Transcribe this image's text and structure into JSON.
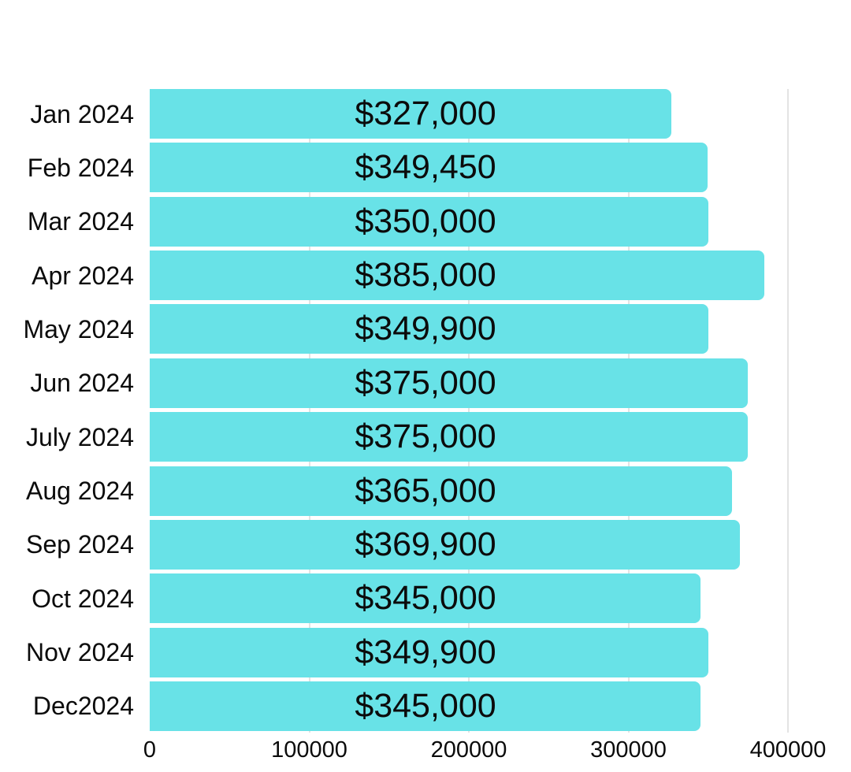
{
  "chart_data": {
    "type": "bar",
    "orientation": "horizontal",
    "categories": [
      "Jan 2024",
      "Feb 2024",
      "Mar 2024",
      "Apr 2024",
      "May 2024",
      "Jun 2024",
      "July 2024",
      "Aug 2024",
      "Sep 2024",
      "Oct 2024",
      "Nov 2024",
      "Dec2024"
    ],
    "values": [
      327000,
      349450,
      350000,
      385000,
      349900,
      375000,
      375000,
      365000,
      369900,
      345000,
      349900,
      345000
    ],
    "value_labels": [
      "$327,000",
      "$349,450",
      "$350,000",
      "$385,000",
      "$349,900",
      "$375,000",
      "$375,000",
      "$365,000",
      "$369,900",
      "$345,000",
      "$349,900",
      "$345,000"
    ],
    "x_ticks": [
      0,
      100000,
      200000,
      300000,
      400000
    ],
    "x_tick_labels": [
      "0",
      "100000",
      "200000",
      "300000",
      "400000"
    ],
    "xlim": [
      0,
      400000
    ],
    "grid": "vertical-gridlines-at-ticks",
    "legend": "none",
    "colors": {
      "bar": "#68E2E7",
      "gridline": "#E3E3E3",
      "text": "#0B0B0B",
      "background": "#FFFFFF"
    }
  }
}
